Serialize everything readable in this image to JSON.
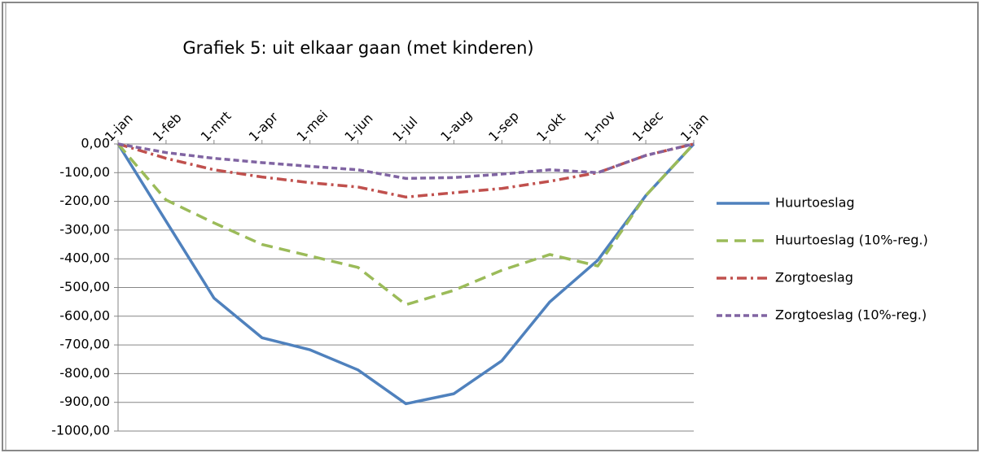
{
  "chart_data": {
    "type": "line",
    "title": "Grafiek 5: uit elkaar gaan (met kinderen)",
    "categories": [
      "1-jan",
      "1-feb",
      "1-mrt",
      "1-apr",
      "1-mei",
      "1-jun",
      "1-jul",
      "1-aug",
      "1-sep",
      "1-okt",
      "1-nov",
      "1-dec",
      "1-jan"
    ],
    "series": [
      {
        "name": "Huurtoeslag",
        "color": "#4f81bd",
        "dash": "solid",
        "values": [
          0,
          -269,
          -537,
          -675,
          -717,
          -787,
          -905,
          -870,
          -755,
          -550,
          -405,
          -180,
          0
        ]
      },
      {
        "name": "Huurtoeslag (10%-reg.)",
        "color": "#9bbb59",
        "dash": "long-dash",
        "values": [
          0,
          -195,
          -275,
          -350,
          -390,
          -430,
          -560,
          -510,
          -440,
          -385,
          -425,
          -180,
          0
        ]
      },
      {
        "name": "Zorgtoeslag",
        "color": "#c0504d",
        "dash": "dash-dot",
        "values": [
          0,
          -50,
          -90,
          -115,
          -135,
          -150,
          -185,
          -170,
          -155,
          -130,
          -100,
          -40,
          0
        ]
      },
      {
        "name": "Zorgtoeslag (10%-reg.)",
        "color": "#8064a2",
        "dash": "short-dash",
        "values": [
          0,
          -30,
          -50,
          -65,
          -78,
          -90,
          -120,
          -117,
          -105,
          -90,
          -100,
          -40,
          0
        ]
      }
    ],
    "ylim": [
      -1000,
      0
    ],
    "yticks": [
      {
        "value": 0,
        "label": "0,00"
      },
      {
        "value": -100,
        "label": "-100,00"
      },
      {
        "value": -200,
        "label": "-200,00"
      },
      {
        "value": -300,
        "label": "-300,00"
      },
      {
        "value": -400,
        "label": "-400,00"
      },
      {
        "value": -500,
        "label": "-500,00"
      },
      {
        "value": -600,
        "label": "-600,00"
      },
      {
        "value": -700,
        "label": "-700,00"
      },
      {
        "value": -800,
        "label": "-800,00"
      },
      {
        "value": -900,
        "label": "-900,00"
      },
      {
        "value": -1000,
        "label": "-1000,00"
      }
    ],
    "grid": true,
    "legend": "right"
  }
}
